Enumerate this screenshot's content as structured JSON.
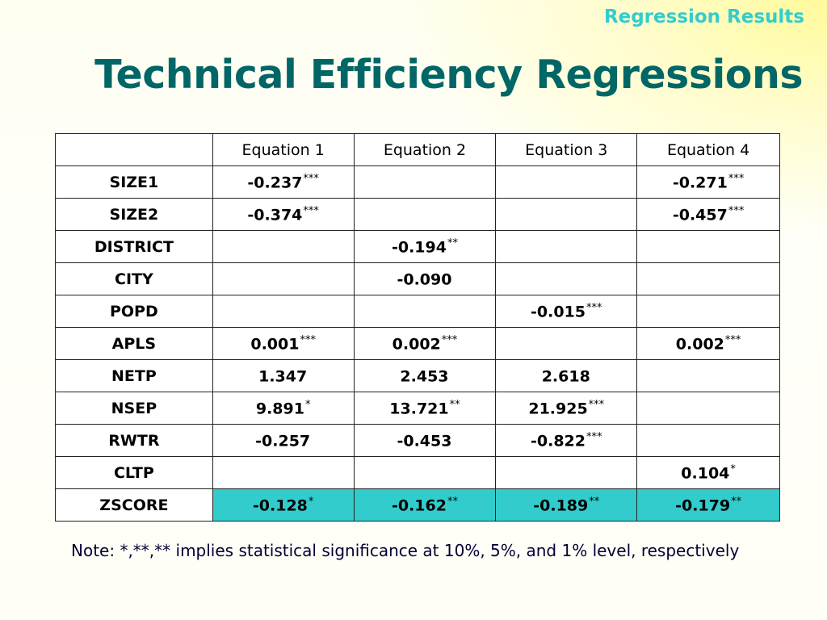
{
  "header": {
    "section_label": "Regression Results",
    "title": "Technical Efficiency Regressions"
  },
  "table": {
    "columns": [
      "",
      "Equation 1",
      "Equation 2",
      "Equation 3",
      "Equation 4"
    ],
    "rows": [
      {
        "label": "SIZE1",
        "cells": [
          {
            "v": "-0.237",
            "s": "***"
          },
          {
            "v": "",
            "s": ""
          },
          {
            "v": "",
            "s": ""
          },
          {
            "v": "-0.271",
            "s": "***"
          }
        ]
      },
      {
        "label": "SIZE2",
        "cells": [
          {
            "v": "-0.374",
            "s": "***"
          },
          {
            "v": "",
            "s": ""
          },
          {
            "v": "",
            "s": ""
          },
          {
            "v": "-0.457",
            "s": "***"
          }
        ]
      },
      {
        "label": "DISTRICT",
        "cells": [
          {
            "v": "",
            "s": ""
          },
          {
            "v": "-0.194",
            "s": "**"
          },
          {
            "v": "",
            "s": ""
          },
          {
            "v": "",
            "s": ""
          }
        ]
      },
      {
        "label": "CITY",
        "cells": [
          {
            "v": "",
            "s": ""
          },
          {
            "v": "-0.090",
            "s": ""
          },
          {
            "v": "",
            "s": ""
          },
          {
            "v": "",
            "s": ""
          }
        ]
      },
      {
        "label": "POPD",
        "cells": [
          {
            "v": "",
            "s": ""
          },
          {
            "v": "",
            "s": ""
          },
          {
            "v": "-0.015",
            "s": "***"
          },
          {
            "v": "",
            "s": ""
          }
        ]
      },
      {
        "label": "APLS",
        "cells": [
          {
            "v": "0.001",
            "s": "***"
          },
          {
            "v": "0.002",
            "s": "***"
          },
          {
            "v": "",
            "s": ""
          },
          {
            "v": "0.002",
            "s": "***"
          }
        ]
      },
      {
        "label": "NETP",
        "cells": [
          {
            "v": "1.347",
            "s": ""
          },
          {
            "v": "2.453",
            "s": ""
          },
          {
            "v": "2.618",
            "s": ""
          },
          {
            "v": "",
            "s": ""
          }
        ]
      },
      {
        "label": "NSEP",
        "cells": [
          {
            "v": "9.891",
            "s": "*"
          },
          {
            "v": "13.721",
            "s": "**"
          },
          {
            "v": "21.925",
            "s": "***"
          },
          {
            "v": "",
            "s": ""
          }
        ]
      },
      {
        "label": "RWTR",
        "cells": [
          {
            "v": "-0.257",
            "s": ""
          },
          {
            "v": "-0.453",
            "s": ""
          },
          {
            "v": "-0.822",
            "s": "***"
          },
          {
            "v": "",
            "s": ""
          }
        ]
      },
      {
        "label": "CLTP",
        "cells": [
          {
            "v": "",
            "s": ""
          },
          {
            "v": "",
            "s": ""
          },
          {
            "v": "",
            "s": ""
          },
          {
            "v": "0.104",
            "s": "*"
          }
        ]
      },
      {
        "label": "ZSCORE",
        "cells": [
          {
            "v": "-0.128",
            "s": "*"
          },
          {
            "v": "-0.162",
            "s": "**"
          },
          {
            "v": "-0.189",
            "s": "**"
          },
          {
            "v": "-0.179",
            "s": "**"
          }
        ]
      }
    ]
  },
  "note": "Note: *,**,** implies statistical significance at 10%, 5%, and 1% level, respectively",
  "colors": {
    "title": "#006666",
    "section_label": "#33cccc",
    "highlight_row": "#33cccc",
    "background_glow": "#fffa96"
  }
}
